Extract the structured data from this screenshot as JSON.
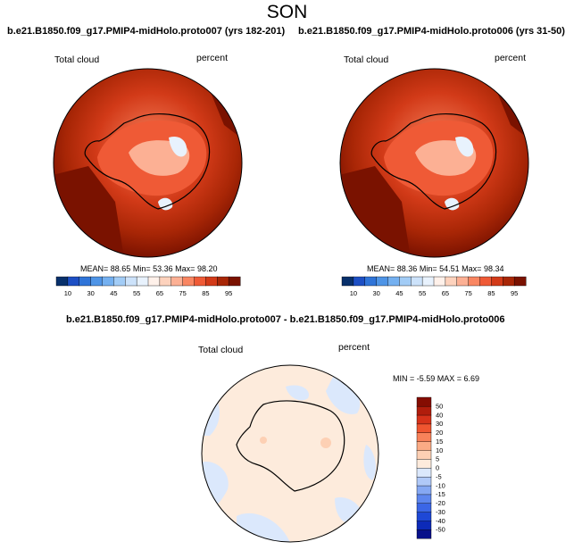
{
  "page": {
    "season": "SON"
  },
  "panels": [
    {
      "title": "b.e21.B1850.f09_g17.PMIP4-midHolo.proto007 (yrs 182-201)",
      "variable": "Total cloud",
      "units": "percent",
      "mean_label": "MEAN=",
      "mean": "88.65",
      "min_label": "Min=",
      "min": "53.36",
      "max_label": "Max=",
      "max": "98.20"
    },
    {
      "title": "b.e21.B1850.f09_g17.PMIP4-midHolo.proto006 (yrs 31-50)",
      "variable": "Total cloud",
      "units": "percent",
      "mean_label": "MEAN=",
      "mean": "88.36",
      "min_label": "Min=",
      "min": "54.51",
      "max_label": "Max=",
      "max": "98.34"
    }
  ],
  "diff": {
    "title": "b.e21.B1850.f09_g17.PMIP4-midHolo.proto007 - b.e21.B1850.f09_g17.PMIP4-midHolo.proto006",
    "variable": "Total cloud",
    "units": "percent",
    "stats_text": "MIN = -5.59 MAX = 6.69"
  },
  "chart_data": [
    {
      "type": "heatmap",
      "projection": "south-polar-stereographic",
      "title": "b.e21.B1850.f09_g17.PMIP4-midHolo.proto007 (yrs 182-201)",
      "variable": "Total cloud",
      "units": "percent",
      "stats": {
        "mean": 88.65,
        "min": 53.36,
        "max": 98.2
      },
      "colorbar": {
        "orientation": "horizontal",
        "levels": [
          10,
          20,
          30,
          40,
          45,
          50,
          55,
          60,
          65,
          70,
          75,
          80,
          85,
          90,
          95
        ],
        "tick_labels": [
          "10",
          "30",
          "45",
          "55",
          "65",
          "75",
          "85",
          "95"
        ],
        "colors": [
          "#08306b",
          "#1d4fc4",
          "#2f74d8",
          "#4e94e6",
          "#74b0f0",
          "#a2ccf6",
          "#cce2fa",
          "#e8f2fd",
          "#fff1ea",
          "#fdd2bd",
          "#fcb094",
          "#f98662",
          "#ef5a36",
          "#d23a18",
          "#a82606",
          "#7a1200"
        ]
      }
    },
    {
      "type": "heatmap",
      "projection": "south-polar-stereographic",
      "title": "b.e21.B1850.f09_g17.PMIP4-midHolo.proto006 (yrs 31-50)",
      "variable": "Total cloud",
      "units": "percent",
      "stats": {
        "mean": 88.36,
        "min": 54.51,
        "max": 98.34
      },
      "colorbar": {
        "orientation": "horizontal",
        "levels": [
          10,
          20,
          30,
          40,
          45,
          50,
          55,
          60,
          65,
          70,
          75,
          80,
          85,
          90,
          95
        ],
        "tick_labels": [
          "10",
          "30",
          "45",
          "55",
          "65",
          "75",
          "85",
          "95"
        ],
        "colors": [
          "#08306b",
          "#1d4fc4",
          "#2f74d8",
          "#4e94e6",
          "#74b0f0",
          "#a2ccf6",
          "#cce2fa",
          "#e8f2fd",
          "#fff1ea",
          "#fdd2bd",
          "#fcb094",
          "#f98662",
          "#ef5a36",
          "#d23a18",
          "#a82606",
          "#7a1200"
        ]
      }
    },
    {
      "type": "heatmap",
      "projection": "south-polar-stereographic",
      "title": "b.e21.B1850.f09_g17.PMIP4-midHolo.proto007 - b.e21.B1850.f09_g17.PMIP4-midHolo.proto006",
      "variable": "Total cloud",
      "units": "percent",
      "stats": {
        "min": -5.59,
        "max": 6.69
      },
      "colorbar": {
        "orientation": "vertical",
        "levels": [
          -50,
          -40,
          -30,
          -20,
          -15,
          -10,
          -5,
          0,
          5,
          10,
          15,
          20,
          30,
          40,
          50
        ],
        "tick_labels": [
          "-50",
          "-40",
          "-30",
          "-20",
          "-15",
          "-10",
          "-5",
          "0",
          "5",
          "10",
          "15",
          "20",
          "30",
          "40",
          "50"
        ],
        "colors": [
          "#08108a",
          "#0c2ab8",
          "#1e48d6",
          "#3b66e6",
          "#5d86ee",
          "#85a8f3",
          "#b0c9f8",
          "#dbe8fc",
          "#fdebdc",
          "#fdd0b4",
          "#fbab85",
          "#f8825a",
          "#ef5530",
          "#d6321a",
          "#b01d0c",
          "#850d02"
        ]
      }
    }
  ]
}
